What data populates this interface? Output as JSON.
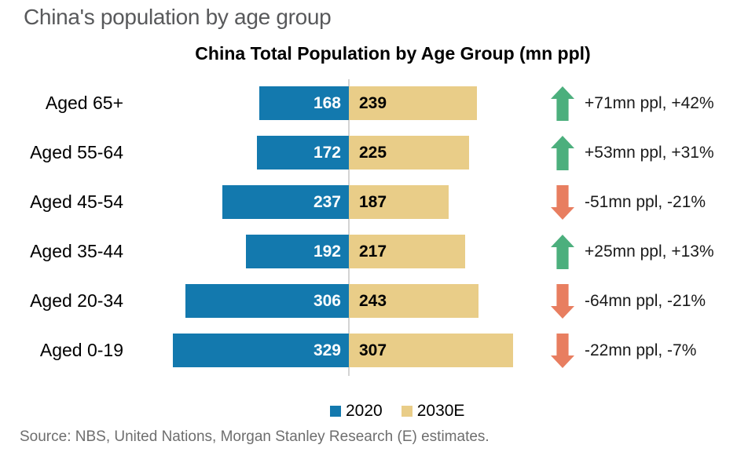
{
  "page_title": "China's population by age group",
  "source": "Source: NBS, United Nations, Morgan Stanley Research (E) estimates.",
  "chart_data": {
    "type": "bar",
    "orientation": "horizontal-diverging",
    "title": "China Total Population by Age Group (mn ppl)",
    "xlabel": "",
    "ylabel": "",
    "grid": false,
    "legend_position": "bottom",
    "categories": [
      "Aged 65+",
      "Aged 55-64",
      "Aged 45-54",
      "Aged 35-44",
      "Aged 20-34",
      "Aged 0-19"
    ],
    "series": [
      {
        "name": "2020",
        "color": "#1379ae",
        "values": [
          168,
          172,
          237,
          192,
          306,
          329
        ]
      },
      {
        "name": "2030E",
        "color": "#e9cd88",
        "values": [
          239,
          225,
          187,
          217,
          243,
          307
        ]
      }
    ],
    "annotations": [
      {
        "direction": "up",
        "label": "+71mn ppl, +42%"
      },
      {
        "direction": "up",
        "label": "+53mn ppl, +31%"
      },
      {
        "direction": "down",
        "label": "-51mn ppl, -21%"
      },
      {
        "direction": "up",
        "label": "+25mn ppl, +13%"
      },
      {
        "direction": "down",
        "label": "-64mn ppl, -21%"
      },
      {
        "direction": "down",
        "label": "-22mn ppl, -7%"
      }
    ],
    "colors": {
      "up_arrow": "#4caf7d",
      "down_arrow": "#e87e60",
      "axis_line": "#d4d4d4",
      "value_label_2020": "#ffffff",
      "value_label_2030e": "#000000"
    }
  }
}
